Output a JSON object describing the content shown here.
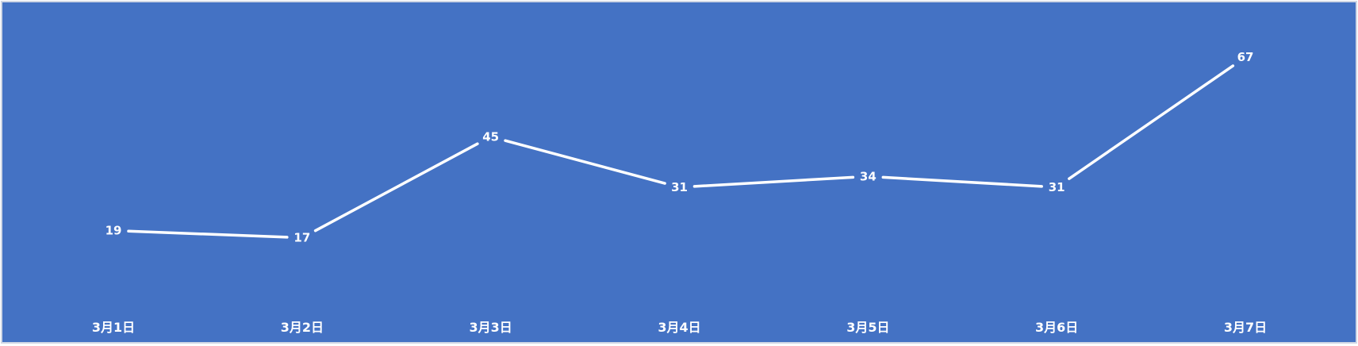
{
  "chart_data": {
    "type": "line",
    "categories": [
      "3月1日",
      "3月2日",
      "3月3日",
      "3月4日",
      "3月5日",
      "3月6日",
      "3月7日"
    ],
    "series": [
      {
        "values": [
          19,
          17,
          45,
          31,
          34,
          31,
          67
        ]
      }
    ],
    "ylim": [
      0,
      80
    ],
    "grid": false,
    "legend": "none",
    "data_labels": true,
    "drop_lines": true,
    "colors": {
      "background": "#4472c4",
      "line": "#ffffff",
      "text": "#ffffff",
      "border": "#d0d7e5"
    }
  }
}
